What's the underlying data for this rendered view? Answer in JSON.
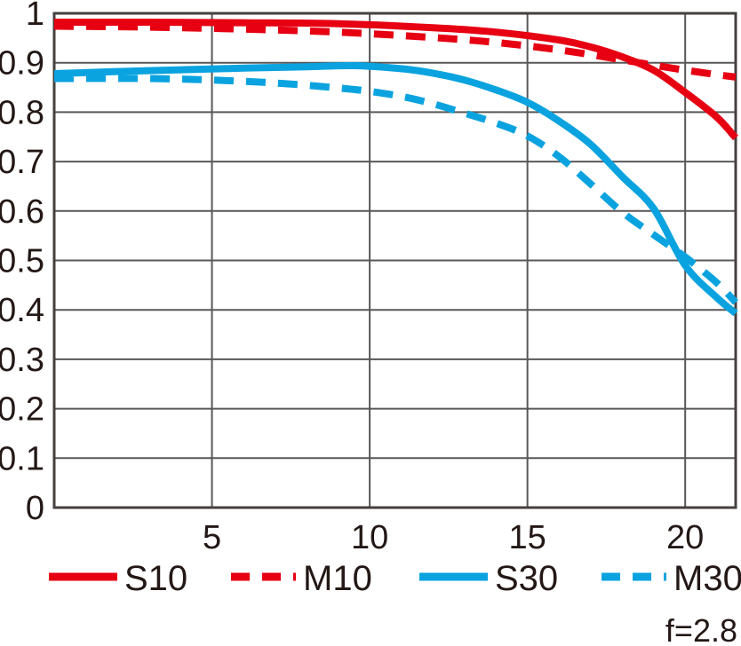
{
  "chart_data": {
    "type": "line",
    "title": "",
    "xlabel": "",
    "ylabel": "",
    "xlim": [
      0,
      21.6
    ],
    "ylim": [
      0,
      1
    ],
    "grid": true,
    "legend_position": "bottom",
    "annotation": "f=2.8",
    "x_ticks": [
      {
        "v": 5,
        "label": "5"
      },
      {
        "v": 10,
        "label": "10"
      },
      {
        "v": 15,
        "label": "15"
      },
      {
        "v": 20,
        "label": "20"
      }
    ],
    "y_ticks": [
      {
        "v": 1.0,
        "label": "1"
      },
      {
        "v": 0.9,
        "label": "0.9"
      },
      {
        "v": 0.8,
        "label": "0.8"
      },
      {
        "v": 0.7,
        "label": "0.7"
      },
      {
        "v": 0.6,
        "label": "0.6"
      },
      {
        "v": 0.5,
        "label": "0.5"
      },
      {
        "v": 0.4,
        "label": "0.4"
      },
      {
        "v": 0.3,
        "label": "0.3"
      },
      {
        "v": 0.2,
        "label": "0.2"
      },
      {
        "v": 0.1,
        "label": "0.1"
      },
      {
        "v": 0.0,
        "label": "0"
      }
    ],
    "series": [
      {
        "name": "S10",
        "color": "#e60012",
        "style": "solid",
        "points": [
          [
            0,
            0.982
          ],
          [
            3,
            0.982
          ],
          [
            6,
            0.981
          ],
          [
            9,
            0.979
          ],
          [
            12,
            0.971
          ],
          [
            14,
            0.962
          ],
          [
            16,
            0.946
          ],
          [
            17,
            0.932
          ],
          [
            18,
            0.912
          ],
          [
            19,
            0.885
          ],
          [
            20,
            0.84
          ],
          [
            21,
            0.79
          ],
          [
            21.6,
            0.748
          ]
        ]
      },
      {
        "name": "M10",
        "color": "#e60012",
        "style": "dashed",
        "points": [
          [
            0,
            0.974
          ],
          [
            3,
            0.972
          ],
          [
            6,
            0.968
          ],
          [
            9,
            0.962
          ],
          [
            12,
            0.951
          ],
          [
            14,
            0.941
          ],
          [
            16,
            0.926
          ],
          [
            18,
            0.906
          ],
          [
            19,
            0.895
          ],
          [
            20,
            0.885
          ],
          [
            21,
            0.876
          ],
          [
            21.6,
            0.871
          ]
        ]
      },
      {
        "name": "S30",
        "color": "#0aa3df",
        "style": "solid",
        "points": [
          [
            0,
            0.878
          ],
          [
            3,
            0.884
          ],
          [
            6,
            0.889
          ],
          [
            8,
            0.892
          ],
          [
            9.5,
            0.894
          ],
          [
            11,
            0.888
          ],
          [
            12,
            0.879
          ],
          [
            13,
            0.865
          ],
          [
            14,
            0.845
          ],
          [
            15,
            0.82
          ],
          [
            16,
            0.782
          ],
          [
            17,
            0.735
          ],
          [
            18,
            0.67
          ],
          [
            19,
            0.605
          ],
          [
            20,
            0.49
          ],
          [
            21,
            0.425
          ],
          [
            21.6,
            0.393
          ]
        ]
      },
      {
        "name": "M30",
        "color": "#0aa3df",
        "style": "dashed",
        "points": [
          [
            0,
            0.868
          ],
          [
            3,
            0.868
          ],
          [
            5,
            0.865
          ],
          [
            7,
            0.859
          ],
          [
            9,
            0.849
          ],
          [
            10,
            0.842
          ],
          [
            11,
            0.832
          ],
          [
            12,
            0.817
          ],
          [
            13,
            0.798
          ],
          [
            14,
            0.778
          ],
          [
            15,
            0.752
          ],
          [
            16,
            0.71
          ],
          [
            17,
            0.655
          ],
          [
            18,
            0.598
          ],
          [
            19,
            0.552
          ],
          [
            20,
            0.507
          ],
          [
            21,
            0.455
          ],
          [
            21.6,
            0.415
          ]
        ]
      }
    ]
  },
  "colors": {
    "background": "#ffffff",
    "grid": "#595757",
    "border": "#453f3e",
    "text": "#231815",
    "red": "#e60012",
    "blue": "#0aa3df"
  }
}
